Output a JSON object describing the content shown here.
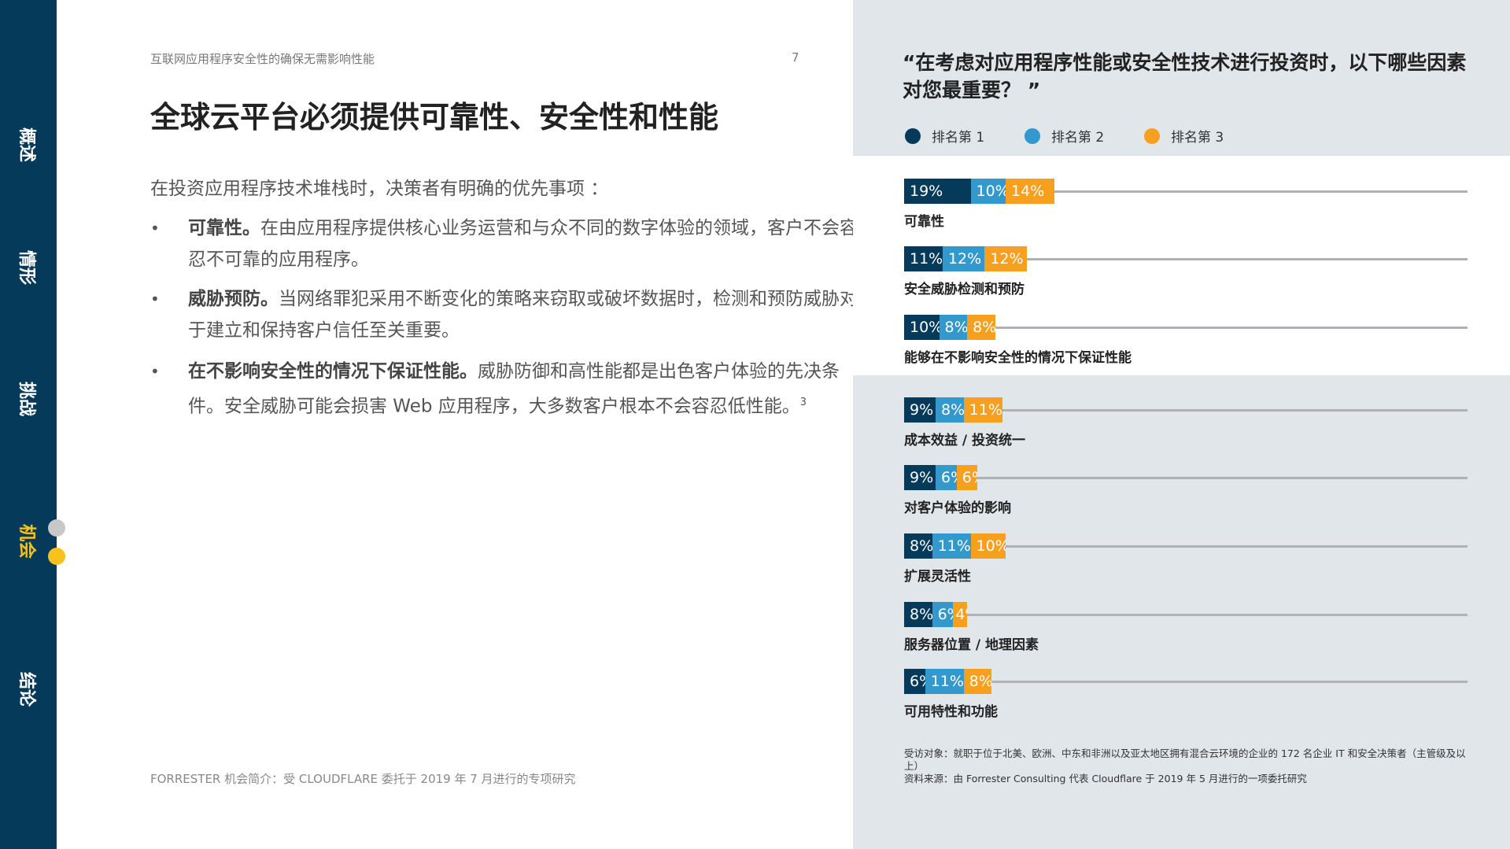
{
  "sidebar": {
    "items": [
      {
        "label": "概述",
        "active": false
      },
      {
        "label": "情形",
        "active": false
      },
      {
        "label": "挑战",
        "active": false
      },
      {
        "label": "机会",
        "active": true
      },
      {
        "label": "结论",
        "active": false
      }
    ]
  },
  "page": {
    "header": "互联网应用程序安全性的确保无需影响性能",
    "page_number": "7",
    "title": "全球云平台必须提供可靠性、安全性和性能",
    "intro": "在投资应用程序技术堆栈时，决策者有明确的优先事项 ：",
    "bullets": [
      {
        "bold": "可靠性。",
        "text": "在由应用程序提供核心业务运营和与众不同的数字体验的领域，客户不会容忍不可靠的应用程序。"
      },
      {
        "bold": "威胁预防。",
        "text": "当网络罪犯采用不断变化的策略来窃取或破坏数据时，检测和预防威胁对于建立和保持客户信任至关重要。"
      },
      {
        "bold": "在不影响安全性的情况下保证性能。",
        "text": "威胁防御和高性能都是出色客户体验的先决条件。安全威胁可能会损害 Web 应用程序，大多数客户根本不会容忍低性能。",
        "sup": "3"
      }
    ],
    "footer": "FORRESTER 机会简介：受 CLOUDFLARE 委托于 2019 年 7 月进行的专项研究"
  },
  "colors": {
    "rank1": "#063a5a",
    "rank2": "#3399cc",
    "rank3": "#f79f1f",
    "active_nav": "#f7c21b"
  },
  "chart_data": {
    "type": "bar",
    "stacked": true,
    "orientation": "horizontal",
    "title": "“在考虑对应用程序性能或安全性技术进行投资时，以下哪些因素对您最重要？ ”",
    "legend": [
      "排名第 1",
      "排名第 2",
      "排名第 3"
    ],
    "legend_position": "top-left",
    "categories": [
      "可靠性",
      "安全威胁检测和预防",
      "能够在不影响安全性的情况下保证性能",
      "成本效益 / 投资统一",
      "对客户体验的影响",
      "扩展灵活性",
      "服务器位置 / 地理因素",
      "可用特性和功能"
    ],
    "series": [
      {
        "name": "排名第 1",
        "values": [
          19,
          11,
          10,
          9,
          9,
          8,
          8,
          6
        ]
      },
      {
        "name": "排名第 2",
        "values": [
          10,
          12,
          8,
          8,
          6,
          11,
          6,
          11
        ]
      },
      {
        "name": "排名第 3",
        "values": [
          14,
          12,
          8,
          11,
          6,
          10,
          4,
          8
        ]
      }
    ],
    "unit": "%"
  },
  "notes": {
    "base": "受访对象：就职于位于北美、欧洲、中东和非洲以及亚太地区拥有混合云环境的企业的 172 名企业 IT 和安全决策者（主管级及以上）",
    "source": "资料来源：由 Forrester Consulting 代表 Cloudflare 于 2019 年 5 月进行的一项委托研究"
  }
}
